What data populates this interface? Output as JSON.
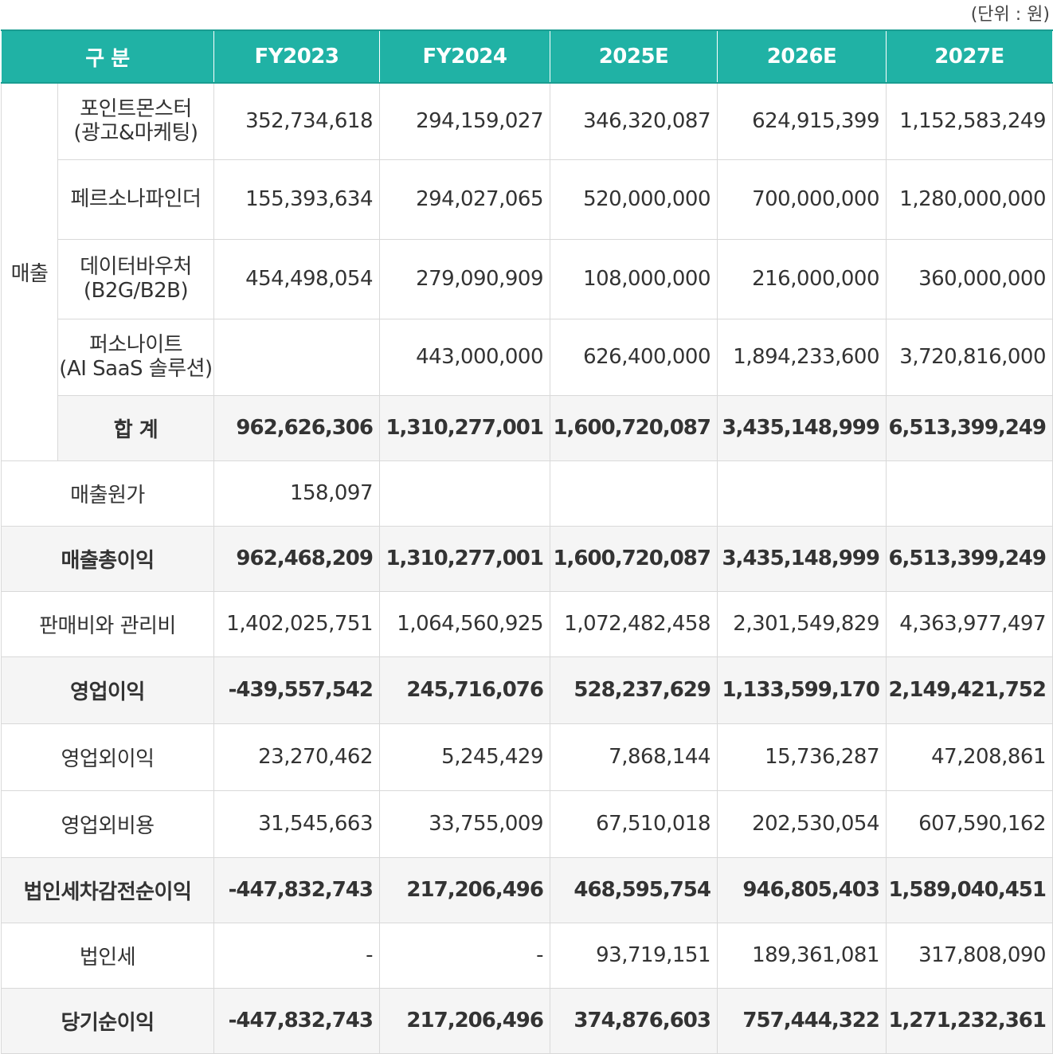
{
  "unit_note": "(단위 : 원)",
  "header": [
    "구 분",
    "FY2023",
    "FY2024",
    "2025E",
    "2026E",
    "2027E"
  ],
  "sales_group_label": "매출",
  "sales_rows": [
    {
      "label_line1": "포인트몬스터",
      "label_line2": "(광고&마케팅)",
      "values": [
        "352,734,618",
        "294,159,027",
        "346,320,087",
        "624,915,399",
        "1,152,583,249"
      ]
    },
    {
      "label_line1": "페르소나파인더",
      "label_line2": "",
      "values": [
        "155,393,634",
        "294,027,065",
        "520,000,000",
        "700,000,000",
        "1,280,000,000"
      ]
    },
    {
      "label_line1": "데이터바우처",
      "label_line2": "(B2G/B2B)",
      "values": [
        "454,498,054",
        "279,090,909",
        "108,000,000",
        "216,000,000",
        "360,000,000"
      ]
    },
    {
      "label_line1": "퍼소나이트",
      "label_line2": "(AI SaaS 솔루션)",
      "values": [
        "",
        "443,000,000",
        "626,400,000",
        "1,894,233,600",
        "3,720,816,000"
      ]
    }
  ],
  "sales_total": {
    "label": "합 계",
    "values": [
      "962,626,306",
      "1,310,277,001",
      "1,600,720,087",
      "3,435,148,999",
      "6,513,399,249"
    ]
  },
  "rows": [
    {
      "label": "매출원가",
      "bold": false,
      "values": [
        "158,097",
        "",
        "",
        "",
        ""
      ]
    },
    {
      "label": "매출총이익",
      "bold": true,
      "values": [
        "962,468,209",
        "1,310,277,001",
        "1,600,720,087",
        "3,435,148,999",
        "6,513,399,249"
      ]
    },
    {
      "label": "판매비와 관리비",
      "bold": false,
      "values": [
        "1,402,025,751",
        "1,064,560,925",
        "1,072,482,458",
        "2,301,549,829",
        "4,363,977,497"
      ]
    },
    {
      "label": "영업이익",
      "bold": true,
      "values": [
        "-439,557,542",
        "245,716,076",
        "528,237,629",
        "1,133,599,170",
        "2,149,421,752"
      ]
    },
    {
      "label": "영업외이익",
      "bold": false,
      "values": [
        "23,270,462",
        "5,245,429",
        "7,868,144",
        "15,736,287",
        "47,208,861"
      ]
    },
    {
      "label": "영업외비용",
      "bold": false,
      "values": [
        "31,545,663",
        "33,755,009",
        "67,510,018",
        "202,530,054",
        "607,590,162"
      ]
    },
    {
      "label": "법인세차감전순이익",
      "bold": true,
      "values": [
        "-447,832,743",
        "217,206,496",
        "468,595,754",
        "946,805,403",
        "1,589,040,451"
      ]
    },
    {
      "label": "법인세",
      "bold": false,
      "values": [
        "-",
        "-",
        "93,719,151",
        "189,361,081",
        "317,808,090"
      ]
    },
    {
      "label": "당기순이익",
      "bold": true,
      "values": [
        "-447,832,743",
        "217,206,496",
        "374,876,603",
        "757,444,322",
        "1,271,232,361"
      ]
    }
  ]
}
